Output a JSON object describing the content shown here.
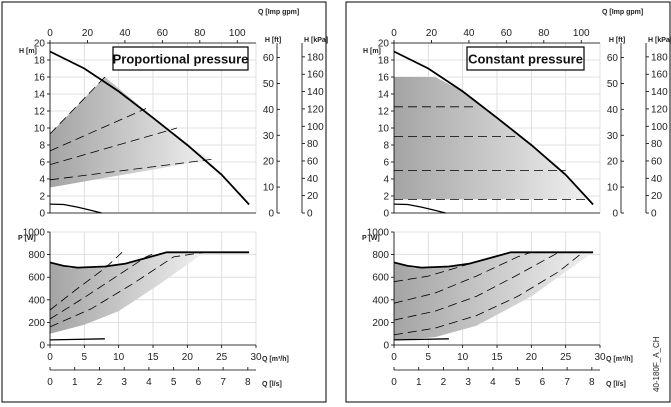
{
  "side_label": "40-180F_A_CH",
  "colors": {
    "region_dark": "#a4a4a4",
    "region_light": "#f0f0f0",
    "grid": "#d8d8d8"
  },
  "chart_data": [
    {
      "type": "line",
      "title": "Proportional pressure",
      "axes": {
        "q_m3h": {
          "label": "Q [m³/h]",
          "range": [
            0,
            30
          ],
          "ticks": [
            0,
            5,
            10,
            15,
            20,
            25,
            30
          ]
        },
        "q_ls": {
          "label": "Q [l/s]",
          "range": [
            0,
            8.33
          ],
          "ticks": [
            0,
            1,
            2,
            3,
            4,
            5,
            6,
            7,
            8
          ]
        },
        "q_impgpm": {
          "label": "Q [Imp gpm]",
          "range": [
            0,
            110
          ],
          "ticks": [
            0,
            20,
            40,
            60,
            80,
            100
          ]
        },
        "h_m": {
          "label": "H [m]",
          "range": [
            0,
            20
          ],
          "ticks": [
            0,
            2,
            4,
            6,
            8,
            10,
            12,
            14,
            16,
            18,
            20
          ]
        },
        "h_ft": {
          "label": "H [ft]",
          "range": [
            0,
            65.6
          ],
          "ticks": [
            0,
            10,
            20,
            30,
            40,
            50,
            60
          ]
        },
        "h_kpa": {
          "label": "H [kPa]",
          "range": [
            0,
            196
          ],
          "ticks": [
            0,
            20,
            40,
            60,
            80,
            100,
            120,
            140,
            160,
            180
          ]
        },
        "p_w": {
          "label": "P [W]",
          "range": [
            0,
            1000
          ],
          "ticks": [
            0,
            200,
            400,
            600,
            800,
            1000
          ]
        }
      },
      "head": {
        "max_curve": [
          [
            0,
            19
          ],
          [
            5,
            17
          ],
          [
            10,
            14.3
          ],
          [
            15,
            11.2
          ],
          [
            20,
            8
          ],
          [
            25,
            4.5
          ],
          [
            29,
            1
          ]
        ],
        "region": [
          [
            0,
            3
          ],
          [
            0,
            9.3
          ],
          [
            8,
            16
          ],
          [
            20,
            8
          ],
          [
            23.5,
            6.3
          ],
          [
            0,
            3
          ]
        ],
        "control_curves": [
          [
            [
              0,
              3.9
            ],
            [
              23.5,
              6.3
            ]
          ],
          [
            [
              0,
              5.7
            ],
            [
              18.5,
              10
            ]
          ],
          [
            [
              0,
              7.3
            ],
            [
              14,
              12.3
            ]
          ],
          [
            [
              0,
              9.3
            ],
            [
              8,
              16
            ]
          ]
        ],
        "min_curve": [
          [
            0,
            1.05
          ],
          [
            2,
            1
          ],
          [
            4,
            0.7
          ],
          [
            6,
            0.3
          ],
          [
            7.5,
            0
          ]
        ]
      },
      "power": {
        "max_curve": [
          [
            0,
            730
          ],
          [
            2,
            700
          ],
          [
            4,
            685
          ],
          [
            8,
            695
          ],
          [
            11,
            720
          ],
          [
            14,
            770
          ],
          [
            17,
            820
          ],
          [
            29,
            820
          ]
        ],
        "region": [
          [
            0,
            100
          ],
          [
            0,
            720
          ],
          [
            3,
            680
          ],
          [
            8,
            700
          ],
          [
            11,
            720
          ],
          [
            14,
            770
          ],
          [
            17,
            820
          ],
          [
            22.5,
            820
          ],
          [
            16,
            540
          ],
          [
            10,
            300
          ],
          [
            5,
            180
          ],
          [
            0,
            100
          ]
        ],
        "control_curves": [
          [
            [
              0,
              160
            ],
            [
              6,
              320
            ],
            [
              12,
              540
            ],
            [
              18,
              780
            ],
            [
              22.5,
              820
            ]
          ],
          [
            [
              0,
              230
            ],
            [
              5,
              420
            ],
            [
              10,
              620
            ],
            [
              14,
              780
            ],
            [
              15.5,
              820
            ]
          ],
          [
            [
              0,
              310
            ],
            [
              4,
              500
            ],
            [
              8,
              680
            ],
            [
              10.5,
              820
            ]
          ]
        ],
        "min_curve": [
          [
            0,
            45
          ],
          [
            4,
            50
          ],
          [
            8,
            55
          ]
        ]
      }
    },
    {
      "type": "line",
      "title": "Constant pressure",
      "axes": {
        "q_m3h": {
          "label": "Q [m³/h]",
          "range": [
            0,
            30
          ],
          "ticks": [
            0,
            5,
            10,
            15,
            20,
            25,
            30
          ]
        },
        "q_ls": {
          "label": "Q [l/s]",
          "range": [
            0,
            8.33
          ],
          "ticks": [
            0,
            1,
            2,
            3,
            4,
            5,
            6,
            7,
            8
          ]
        },
        "q_impgpm": {
          "label": "Q [Imp gpm]",
          "range": [
            0,
            110
          ],
          "ticks": [
            0,
            20,
            40,
            60,
            80,
            100
          ]
        },
        "h_m": {
          "label": "H [m]",
          "range": [
            0,
            20
          ],
          "ticks": [
            0,
            2,
            4,
            6,
            8,
            10,
            12,
            14,
            16,
            18,
            20
          ]
        },
        "h_ft": {
          "label": "H [ft]",
          "range": [
            0,
            65.6
          ],
          "ticks": [
            0,
            10,
            20,
            30,
            40,
            50,
            60
          ]
        },
        "h_kpa": {
          "label": "H [kPa]",
          "range": [
            0,
            196
          ],
          "ticks": [
            0,
            20,
            40,
            60,
            80,
            100,
            120,
            140,
            160,
            180
          ]
        },
        "p_w": {
          "label": "P [W]",
          "range": [
            0,
            1000
          ],
          "ticks": [
            0,
            200,
            400,
            600,
            800,
            1000
          ]
        }
      },
      "head": {
        "max_curve": [
          [
            0,
            19
          ],
          [
            5,
            17
          ],
          [
            10,
            14.3
          ],
          [
            15,
            11.2
          ],
          [
            20,
            8
          ],
          [
            25,
            4.5
          ],
          [
            29,
            1
          ]
        ],
        "region": [
          [
            0,
            1.6
          ],
          [
            0,
            16
          ],
          [
            6,
            16
          ],
          [
            10,
            14.3
          ],
          [
            15,
            11.2
          ],
          [
            20,
            8
          ],
          [
            24,
            5.3
          ],
          [
            26.5,
            3
          ],
          [
            28.5,
            1.6
          ],
          [
            0,
            1.6
          ]
        ],
        "control_curves": [
          [
            [
              0,
              12.5
            ],
            [
              12,
              12.5
            ]
          ],
          [
            [
              0,
              9
            ],
            [
              18,
              9
            ]
          ],
          [
            [
              0,
              5
            ],
            [
              25,
              5
            ]
          ],
          [
            [
              0,
              1.6
            ],
            [
              28.5,
              1.6
            ]
          ]
        ],
        "min_curve": [
          [
            0,
            1.05
          ],
          [
            2,
            1
          ],
          [
            4,
            0.7
          ],
          [
            6,
            0.3
          ],
          [
            7.5,
            0
          ]
        ]
      },
      "power": {
        "max_curve": [
          [
            0,
            730
          ],
          [
            2,
            700
          ],
          [
            4,
            685
          ],
          [
            8,
            695
          ],
          [
            11,
            720
          ],
          [
            14,
            770
          ],
          [
            17,
            820
          ],
          [
            29,
            820
          ]
        ],
        "region": [
          [
            0,
            40
          ],
          [
            0,
            720
          ],
          [
            3,
            680
          ],
          [
            8,
            700
          ],
          [
            11,
            720
          ],
          [
            14,
            770
          ],
          [
            17,
            820
          ],
          [
            29,
            820
          ],
          [
            20,
            430
          ],
          [
            12,
            170
          ],
          [
            6,
            70
          ],
          [
            0,
            40
          ]
        ],
        "control_curves": [
          [
            [
              0,
              560
            ],
            [
              5,
              610
            ],
            [
              10,
              700
            ],
            [
              15,
              790
            ],
            [
              17,
              820
            ]
          ],
          [
            [
              0,
              370
            ],
            [
              6,
              460
            ],
            [
              12,
              610
            ],
            [
              18,
              780
            ],
            [
              20,
              820
            ]
          ],
          [
            [
              0,
              220
            ],
            [
              6,
              300
            ],
            [
              12,
              430
            ],
            [
              18,
              620
            ],
            [
              24,
              820
            ]
          ],
          [
            [
              0,
              90
            ],
            [
              6,
              150
            ],
            [
              12,
              260
            ],
            [
              18,
              430
            ],
            [
              24,
              650
            ],
            [
              27.5,
              820
            ]
          ]
        ],
        "min_curve": [
          [
            0,
            45
          ],
          [
            4,
            50
          ],
          [
            8,
            55
          ]
        ]
      }
    }
  ]
}
